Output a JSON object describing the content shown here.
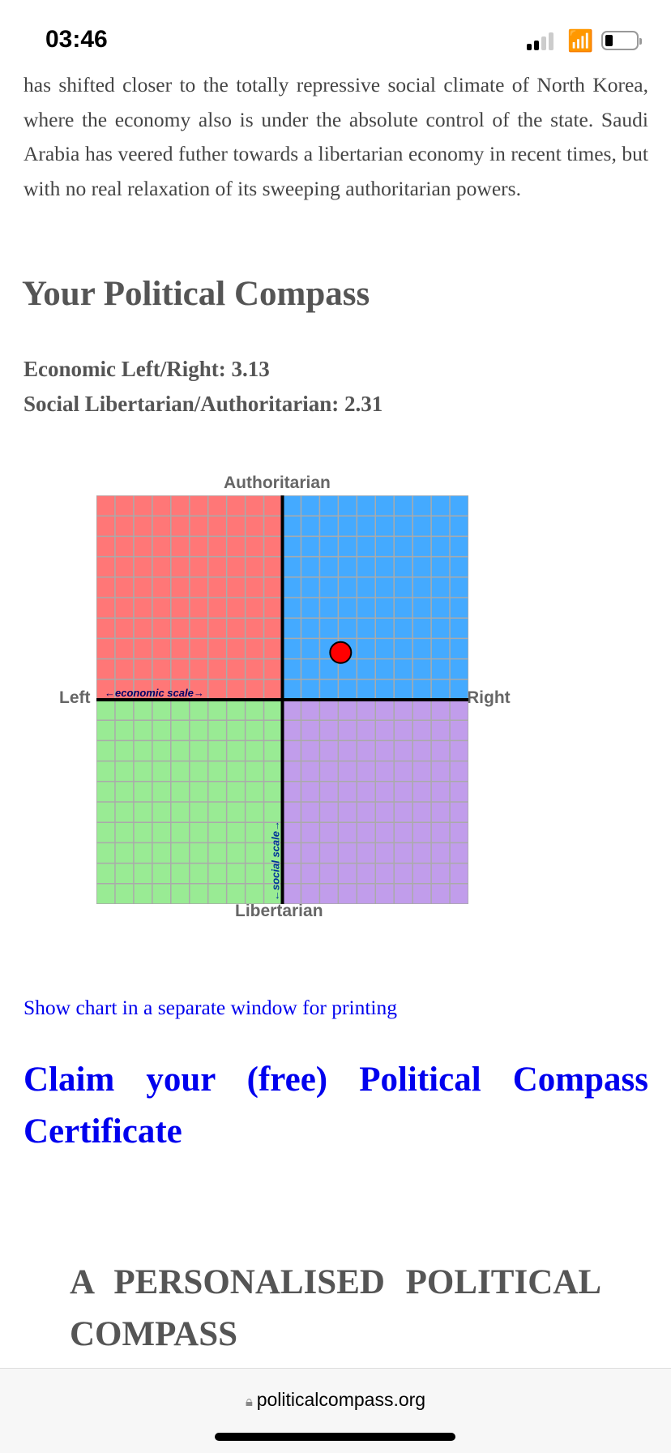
{
  "status_bar": {
    "time": "03:46"
  },
  "article": {
    "paragraph": "has shifted closer to the totally repressive social climate of North Korea, where the economy also is under the absolute control of the state. Saudi Arabia has veered futher towards a libertarian economy in recent times, but with no real relaxation of its sweeping authoritarian powers."
  },
  "compass": {
    "heading": "Your Political Compass",
    "economic_line": "Economic Left/Right: 3.13",
    "social_line": "Social Libertarian/Authoritarian: 2.31"
  },
  "chart_data": {
    "type": "scatter",
    "labels": {
      "top": "Authoritarian",
      "bottom": "Libertarian",
      "left": "Left",
      "right": "Right"
    },
    "x_axis_label": "←economic scale→",
    "y_axis_label": "←social scale→",
    "xlim": [
      -10,
      10
    ],
    "ylim": [
      -10,
      10
    ],
    "grid": true,
    "quadrant_colors": {
      "authoritarian_left": "#ff7777",
      "authoritarian_right": "#44aaff",
      "libertarian_left": "#99eb94",
      "libertarian_right": "#c19deb"
    },
    "points": [
      {
        "x": 3.13,
        "y": 2.31,
        "color": "#ff0000"
      }
    ]
  },
  "links": {
    "print_chart": "Show chart in a separate window for printing",
    "certificate": "Claim your (free) Political Compass Certificate"
  },
  "promo": {
    "text": "A PERSONALISED POLITICAL COMPASS"
  },
  "browser": {
    "url": "politicalcompass.org"
  }
}
